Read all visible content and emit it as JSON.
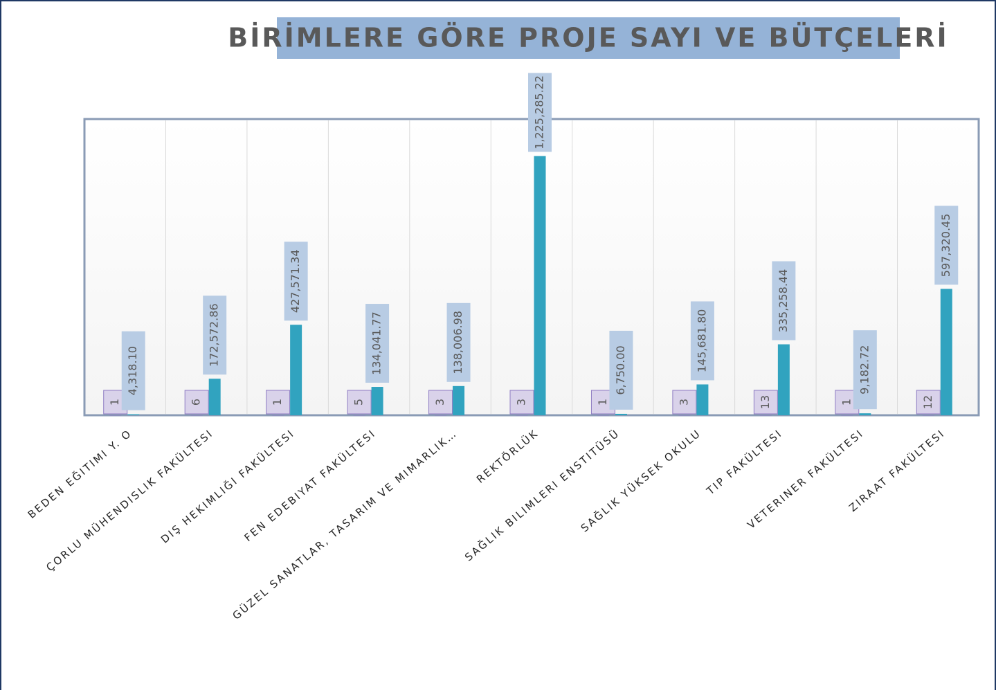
{
  "chart_data": {
    "type": "bar",
    "title": "BİRİMLERE GÖRE PROJE SAYI VE BÜTÇELERİ",
    "categories": [
      "BEDEN EĞITIMI Y. O",
      "ÇORLU MÜHENDISLIK FAKÜLTESI",
      "DIŞ HEKIMLIĞI FAKÜLTESI",
      "FEN EDEBIYAT FAKÜLTESI",
      "GÜZEL SANATLAR, TASARIM VE MIMARLIK…",
      "REKTÖRLÜK",
      "SAĞLIK BILIMLERI ENSTITÜSÜ",
      "SAĞLIK YÜKSEK OKULU",
      "TIP FAKÜLTESI",
      "VETERINER FAKÜLTESI",
      "ZIRAAT FAKÜLTESI"
    ],
    "series": [
      {
        "color": "#8e7cc3",
        "values": [
          1,
          6,
          1,
          5,
          3,
          3,
          1,
          3,
          13,
          1,
          12
        ]
      },
      {
        "color": "#31a3bf",
        "values": [
          4318.1,
          172572.86,
          427571.34,
          134041.77,
          138006.98,
          1225285.22,
          6750.0,
          145681.8,
          335258.44,
          9182.72,
          597320.45
        ],
        "value_labels": [
          "4,318.10",
          "172,572.86",
          "427,571.34",
          "134,041.77",
          "138,006.98",
          "1,225,285.22",
          "6,750.00",
          "145,681.80",
          "335,258.44",
          "9,182.72",
          "597,320.45"
        ]
      }
    ],
    "ylim": [
      0,
      1400000
    ]
  }
}
